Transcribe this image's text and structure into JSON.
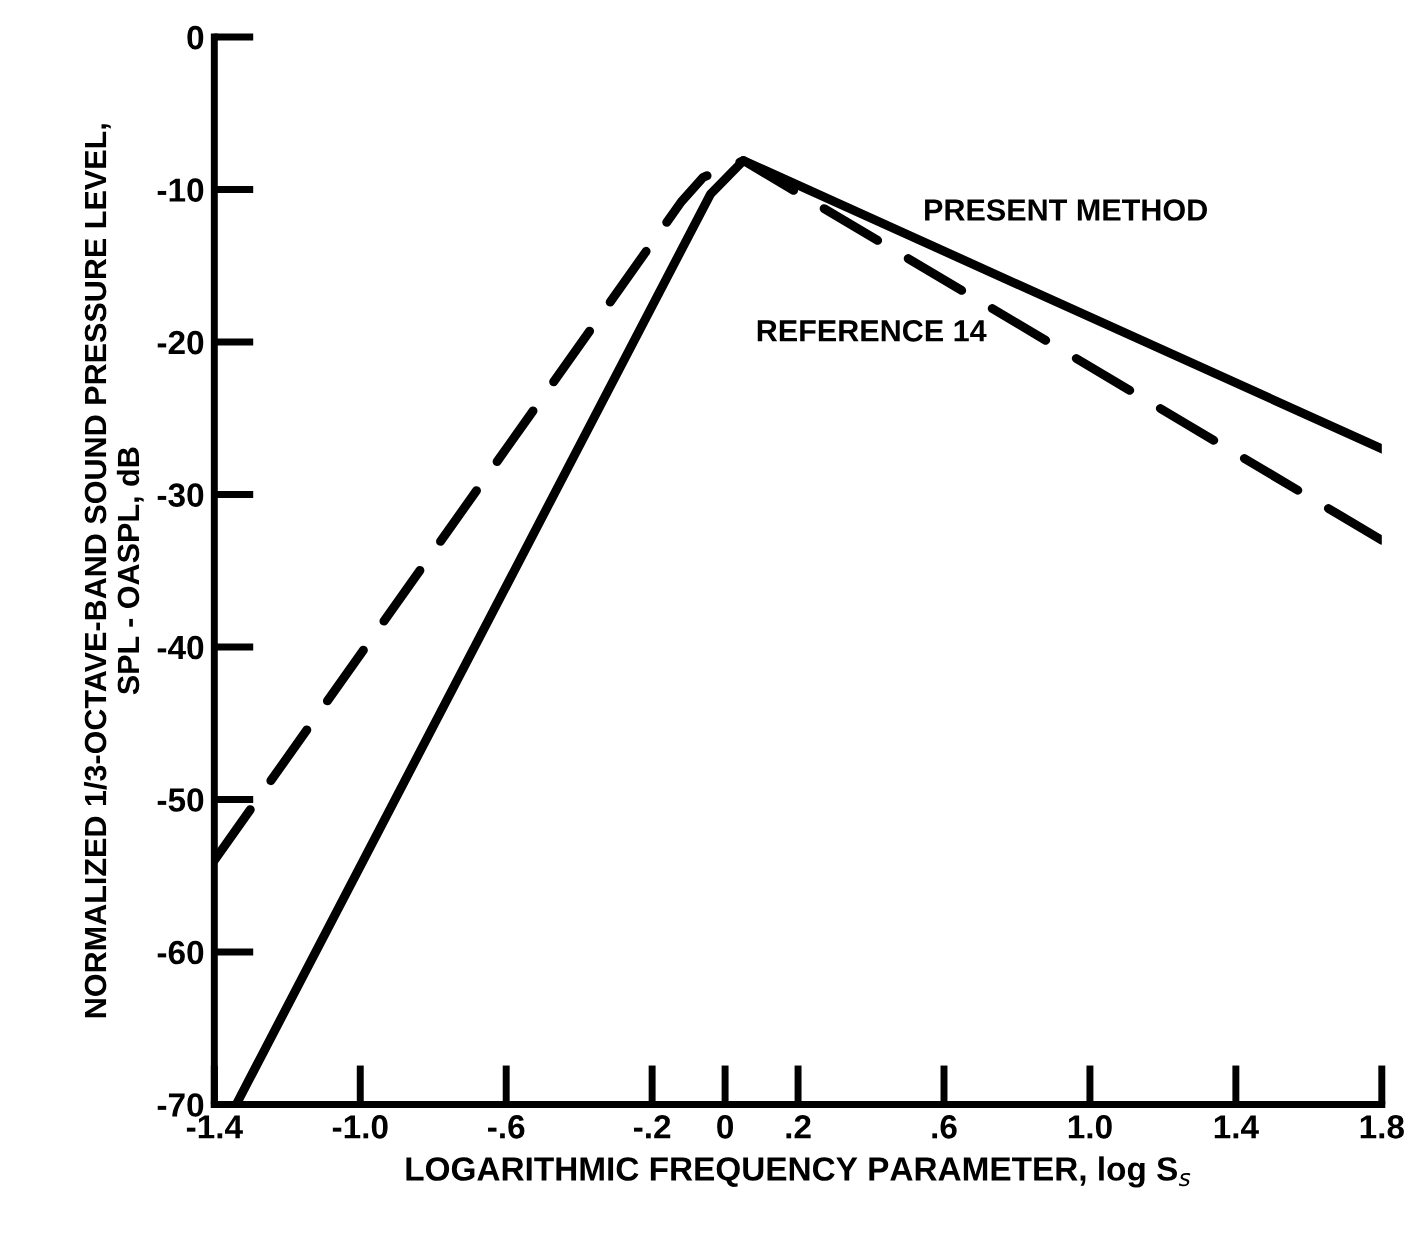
{
  "chart_data": {
    "type": "line",
    "xlabel": "LOGARITHMIC FREQUENCY PARAMETER, log S$_{s}$",
    "ylabel": "NORMALIZED 1/3-OCTAVE-BAND SOUND PRESSURE LEVEL,\nSPL - OASPL, dB",
    "series": [
      {
        "name": "PRESENT METHOD",
        "color": "#000000",
        "line_style": "solid",
        "x": [
          -1.34,
          -0.04,
          0.05,
          1.8
        ],
        "values": [
          -70,
          -10.3,
          -8.1,
          -27
        ]
      },
      {
        "name": "REFERENCE 14",
        "color": "#000000",
        "line_style": "dashed",
        "x": [
          -1.4,
          -0.12,
          -0.06,
          0.05,
          1.8
        ],
        "values": [
          -54,
          -10.8,
          -9.2,
          -8.1,
          -33
        ]
      }
    ],
    "xlim": [
      -1.4,
      1.8
    ],
    "xticks": [
      {
        "value": -1.4,
        "label": "-1.4"
      },
      {
        "value": -1.0,
        "label": "-1.0"
      },
      {
        "value": -0.6,
        "label": "-.6"
      },
      {
        "value": -0.2,
        "label": "-.2"
      },
      0,
      {
        "value": 0.2,
        "label": ".2"
      },
      {
        "value": 0.6,
        "label": ".6"
      },
      {
        "value": 1.0,
        "label": "1.0"
      },
      {
        "value": 1.4,
        "label": "1.4"
      },
      {
        "value": 1.8,
        "label": "1.8"
      }
    ],
    "ylim": [
      -70,
      0
    ],
    "yticks": [
      0,
      -10,
      -20,
      -30,
      -40,
      -50,
      -60,
      -70
    ],
    "grid": false,
    "legend": false,
    "marker": "none"
  }
}
